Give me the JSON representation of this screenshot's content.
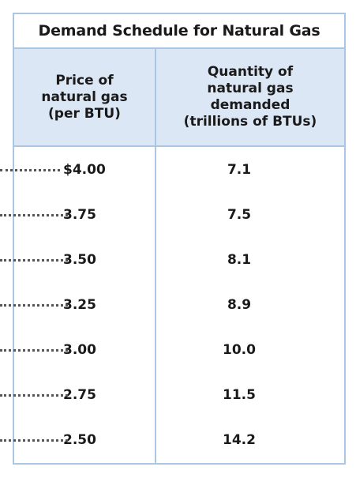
{
  "title": "Demand Schedule for Natural Gas",
  "headers": {
    "price_line1": "Price of",
    "price_line2": "natural gas",
    "price_line3": "(per BTU)",
    "qty_line1": "Quantity of",
    "qty_line2": "natural gas",
    "qty_line3": "demanded",
    "qty_line4": "(trillions of BTUs)"
  },
  "rows": [
    {
      "price": "$4.00",
      "quantity": "7.1"
    },
    {
      "price": "3.75",
      "quantity": "7.5"
    },
    {
      "price": "3.50",
      "quantity": "8.1"
    },
    {
      "price": "3.25",
      "quantity": "8.9"
    },
    {
      "price": "3.00",
      "quantity": "10.0"
    },
    {
      "price": "2.75",
      "quantity": "11.5"
    },
    {
      "price": "2.50",
      "quantity": "14.2"
    }
  ],
  "colors": {
    "border": "#a9c6e2",
    "header_bg": "#dce7f5",
    "text": "#1a1a1a"
  }
}
